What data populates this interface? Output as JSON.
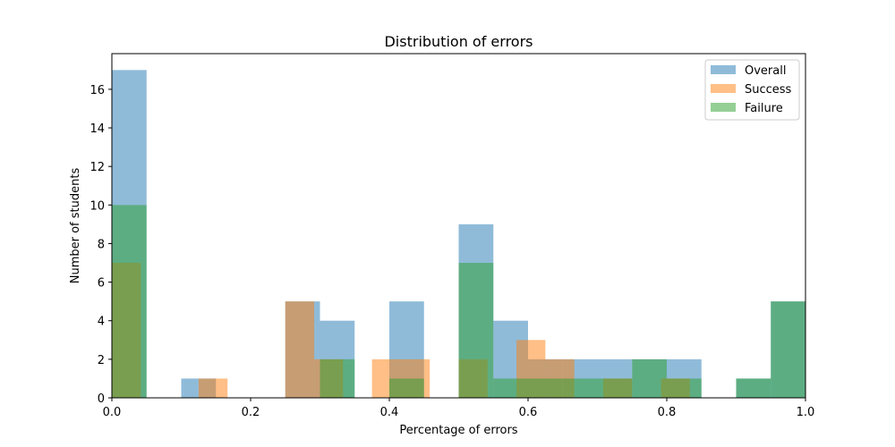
{
  "chart_data": {
    "type": "bar",
    "title": "Distribution of errors",
    "xlabel": "Percentage of errors",
    "ylabel": "Number of students",
    "xlim": [
      0.0,
      1.0
    ],
    "ylim": [
      0,
      17.85
    ],
    "xticks": [
      0.0,
      0.2,
      0.4,
      0.6,
      0.8,
      1.0
    ],
    "xtick_labels": [
      "0.0",
      "0.2",
      "0.4",
      "0.6",
      "0.8",
      "1.0"
    ],
    "yticks": [
      0,
      2,
      4,
      6,
      8,
      10,
      12,
      14,
      16
    ],
    "ytick_labels": [
      "0",
      "2",
      "4",
      "6",
      "8",
      "10",
      "12",
      "14",
      "16"
    ],
    "legend_position": "top-right",
    "series": [
      {
        "name": "Overall",
        "color": "#1f77b4",
        "bins": [
          {
            "x0": 0.0,
            "x1": 0.05,
            "count": 17
          },
          {
            "x0": 0.1,
            "x1": 0.125,
            "count": 1
          },
          {
            "x0": 0.125,
            "x1": 0.15,
            "count": 1
          },
          {
            "x0": 0.25,
            "x1": 0.3,
            "count": 5
          },
          {
            "x0": 0.3,
            "x1": 0.35,
            "count": 4
          },
          {
            "x0": 0.4,
            "x1": 0.45,
            "count": 5
          },
          {
            "x0": 0.5,
            "x1": 0.55,
            "count": 9
          },
          {
            "x0": 0.55,
            "x1": 0.6,
            "count": 4
          },
          {
            "x0": 0.6,
            "x1": 0.65,
            "count": 2
          },
          {
            "x0": 0.65,
            "x1": 0.75,
            "count": 2
          },
          {
            "x0": 0.75,
            "x1": 0.8,
            "count": 2
          },
          {
            "x0": 0.8,
            "x1": 0.85,
            "count": 2
          },
          {
            "x0": 0.9,
            "x1": 0.95,
            "count": 1
          },
          {
            "x0": 0.95,
            "x1": 1.0,
            "count": 5
          }
        ]
      },
      {
        "name": "Success",
        "color": "#ff7f0e",
        "bins": [
          {
            "x0": 0.0,
            "x1": 0.0417,
            "count": 7
          },
          {
            "x0": 0.125,
            "x1": 0.1667,
            "count": 1
          },
          {
            "x0": 0.25,
            "x1": 0.2917,
            "count": 5
          },
          {
            "x0": 0.2917,
            "x1": 0.3333,
            "count": 2
          },
          {
            "x0": 0.375,
            "x1": 0.4167,
            "count": 2
          },
          {
            "x0": 0.4167,
            "x1": 0.4583,
            "count": 2
          },
          {
            "x0": 0.5,
            "x1": 0.5417,
            "count": 2
          },
          {
            "x0": 0.5833,
            "x1": 0.625,
            "count": 3
          },
          {
            "x0": 0.625,
            "x1": 0.6667,
            "count": 2
          },
          {
            "x0": 0.7083,
            "x1": 0.75,
            "count": 1
          },
          {
            "x0": 0.7917,
            "x1": 0.8333,
            "count": 1
          }
        ]
      },
      {
        "name": "Failure",
        "color": "#2ca02c",
        "bins": [
          {
            "x0": 0.0,
            "x1": 0.05,
            "count": 10
          },
          {
            "x0": 0.3,
            "x1": 0.35,
            "count": 2
          },
          {
            "x0": 0.4,
            "x1": 0.45,
            "count": 1
          },
          {
            "x0": 0.5,
            "x1": 0.55,
            "count": 7
          },
          {
            "x0": 0.55,
            "x1": 0.65,
            "count": 1
          },
          {
            "x0": 0.65,
            "x1": 0.75,
            "count": 1
          },
          {
            "x0": 0.75,
            "x1": 0.8,
            "count": 2
          },
          {
            "x0": 0.8,
            "x1": 0.85,
            "count": 1
          },
          {
            "x0": 0.9,
            "x1": 0.95,
            "count": 1
          },
          {
            "x0": 0.95,
            "x1": 1.0,
            "count": 5
          }
        ]
      }
    ]
  }
}
